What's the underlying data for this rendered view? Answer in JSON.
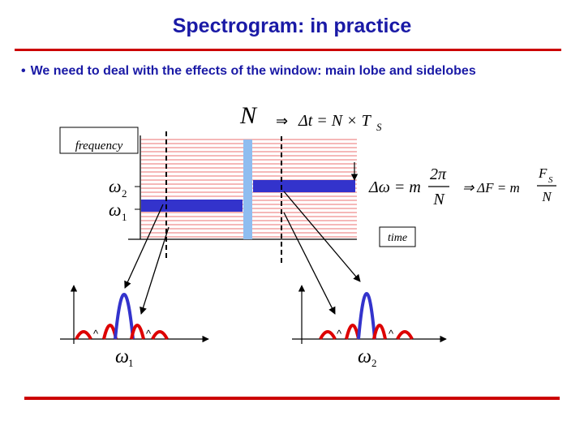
{
  "title": "Spectrogram: in practice",
  "bullet": {
    "marker": "•",
    "text": "We need to deal with the effects of the window: main lobe and sidelobes"
  },
  "figure": {
    "frequency_label": "frequency",
    "time_label": "time",
    "window_symbol": "N",
    "implies_symbol": "⇒",
    "delta_t_lhs": "Δt = N × T",
    "delta_t_sub": "S",
    "delta_omega_lhs": "Δω = m",
    "two_pi": "2π",
    "denom_N": "N",
    "delta_F_lhs": "⇒ ΔF = m",
    "F_S": "F",
    "F_S_sub": "S",
    "omega": "ω",
    "sub_1": "1",
    "sub_2": "2",
    "caret": "^"
  },
  "colors": {
    "title_blue": "#1a1aa6",
    "rule_red": "#cc0000",
    "stripe_pink": "#f2a0a0",
    "band_blue": "#3333cc",
    "window_light_blue": "#8fbdf0",
    "lobe_red": "#dd0000"
  }
}
